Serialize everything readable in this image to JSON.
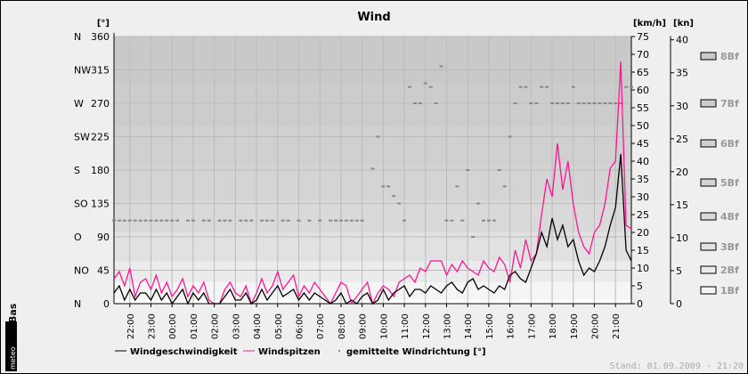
{
  "title": "Wind",
  "stand": "Stand: 01.09.2009 - 21:20",
  "logo": "meteo Base",
  "chart_data": {
    "type": "line",
    "title": "Wind",
    "left_axis": {
      "unit": "[°]",
      "ticks": [
        0,
        45,
        90,
        135,
        180,
        225,
        270,
        315,
        360
      ],
      "compass": [
        "N",
        "NO",
        "O",
        "SO",
        "S",
        "SW",
        "W",
        "NW",
        "N"
      ],
      "range": [
        0,
        360
      ]
    },
    "right_axis_kmh": {
      "unit": "[km/h]",
      "ticks": [
        0,
        5,
        10,
        15,
        20,
        25,
        30,
        35,
        40,
        45,
        50,
        55,
        60,
        65,
        70,
        75
      ],
      "range": [
        0,
        75
      ]
    },
    "right_axis_kn": {
      "unit": "[kn]",
      "ticks": [
        0,
        5,
        10,
        15,
        20,
        25,
        30,
        35,
        40
      ]
    },
    "beaufort": [
      {
        "label": "1Bf",
        "from": 1,
        "color": "#f5f5f5"
      },
      {
        "label": "2Bf",
        "from": 6,
        "color": "#ebebeb"
      },
      {
        "label": "3Bf",
        "from": 12,
        "color": "#e1e1e1"
      },
      {
        "label": "4Bf",
        "from": 20,
        "color": "#d9d9d9"
      },
      {
        "label": "5Bf",
        "from": 29,
        "color": "#d4d4d4"
      },
      {
        "label": "6Bf",
        "from": 39,
        "color": "#d0d0d0"
      },
      {
        "label": "7Bf",
        "from": 50,
        "color": "#cccccc"
      },
      {
        "label": "8Bf",
        "from": 62,
        "color": "#c9c9c9"
      }
    ],
    "x_labels": [
      "22:00",
      "23:00",
      "00:00",
      "01:00",
      "02:00",
      "03:00",
      "04:00",
      "05:00",
      "06:00",
      "07:00",
      "08:00",
      "09:00",
      "10:00",
      "11:00",
      "12:00",
      "13:00",
      "14:00",
      "15:00",
      "16:00",
      "17:00",
      "18:00",
      "19:00",
      "20:00",
      "21:00"
    ],
    "x_start": "21:15",
    "interval_min": 15,
    "series": [
      {
        "name": "Windgeschwindigkeit",
        "color": "#000000",
        "values": [
          3,
          5,
          1,
          4,
          1,
          3,
          3,
          1,
          4,
          1,
          3,
          0,
          2,
          4,
          0,
          3,
          1,
          3,
          0,
          0,
          0,
          2,
          4,
          1,
          1,
          3,
          0,
          1,
          4,
          1,
          3,
          5,
          2,
          3,
          4,
          1,
          3,
          1,
          3,
          2,
          1,
          0,
          1,
          3,
          0,
          1,
          0,
          2,
          3,
          0,
          1,
          4,
          1,
          3,
          4,
          5,
          2,
          4,
          4,
          3,
          5,
          4,
          3,
          5,
          6,
          4,
          3,
          6,
          7,
          4,
          5,
          4,
          3,
          5,
          4,
          8,
          9,
          7,
          6,
          10,
          14,
          20,
          16,
          24,
          18,
          22,
          16,
          18,
          12,
          8,
          10,
          9,
          12,
          16,
          22,
          27,
          42,
          15,
          12
        ]
      },
      {
        "name": "Windspitzen",
        "color": "#ff1493",
        "values": [
          7,
          9,
          5,
          10,
          2,
          6,
          7,
          4,
          8,
          3,
          6,
          2,
          4,
          7,
          2,
          5,
          3,
          6,
          1,
          0,
          0,
          4,
          6,
          3,
          2,
          5,
          0,
          3,
          7,
          3,
          5,
          9,
          4,
          6,
          8,
          2,
          5,
          3,
          6,
          4,
          2,
          0,
          3,
          6,
          5,
          0,
          2,
          4,
          6,
          0,
          3,
          5,
          4,
          2,
          6,
          7,
          8,
          6,
          10,
          9,
          12,
          12,
          12,
          8,
          11,
          9,
          12,
          10,
          9,
          8,
          12,
          10,
          9,
          13,
          11,
          6,
          15,
          10,
          18,
          12,
          14,
          25,
          35,
          30,
          45,
          32,
          40,
          28,
          20,
          16,
          14,
          20,
          22,
          28,
          38,
          40,
          68,
          22,
          21
        ]
      },
      {
        "name": "gemittelte Windrichtung [°]",
        "color": "#888888",
        "values": [
          112,
          112,
          112,
          112,
          112,
          112,
          112,
          112,
          112,
          112,
          112,
          112,
          112,
          null,
          112,
          112,
          null,
          112,
          112,
          null,
          112,
          112,
          112,
          null,
          112,
          112,
          112,
          null,
          112,
          112,
          112,
          null,
          112,
          112,
          null,
          112,
          null,
          112,
          null,
          112,
          null,
          112,
          112,
          112,
          112,
          112,
          112,
          112,
          null,
          182,
          225,
          158,
          158,
          145,
          135,
          112,
          292,
          270,
          270,
          297,
          292,
          270,
          320,
          112,
          112,
          158,
          112,
          180,
          90,
          135,
          112,
          112,
          112,
          180,
          158,
          225,
          270,
          292,
          292,
          270,
          270,
          292,
          292,
          270,
          270,
          270,
          270,
          292,
          270,
          270,
          270,
          270,
          270,
          270,
          270,
          270,
          270,
          292,
          292
        ]
      }
    ]
  }
}
